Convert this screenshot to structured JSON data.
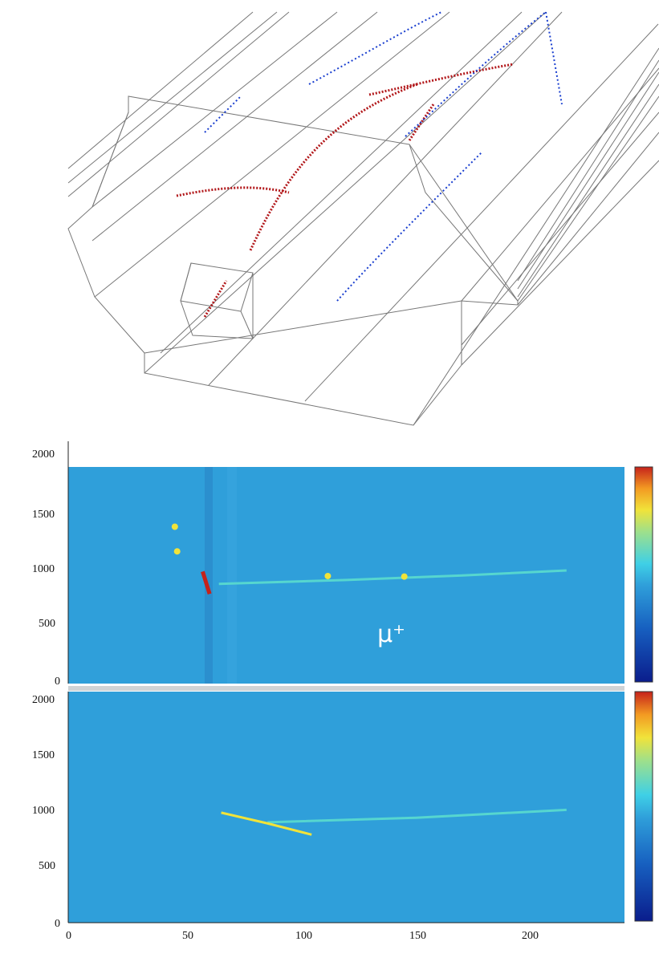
{
  "colors": {
    "track_red": "#b2181b",
    "hit_blue": "#1a3fcf",
    "wire_gray": "#777777",
    "panel_bg": "#2f9fda",
    "muon_track": "#56d6cf",
    "colorbar": [
      "#0a1d8c",
      "#1760c0",
      "#2f9fda",
      "#3fd0e6",
      "#9fe08a",
      "#f1e33a",
      "#f39a22",
      "#e2451b",
      "#c6221b"
    ]
  },
  "chart_data": [
    {
      "type": "heatmap",
      "panel": "top",
      "annotation": "μ⁺",
      "xlim": [
        0,
        240
      ],
      "ylim": [
        0,
        2048
      ],
      "yticks": [
        "0",
        "500",
        "1000",
        "1500",
        "2000"
      ],
      "colorbar": true,
      "tracks": [
        {
          "kind": "muon",
          "points": [
            [
              65,
              890
            ],
            [
              120,
              925
            ],
            [
              170,
              965
            ],
            [
              215,
              1010
            ]
          ]
        },
        {
          "kind": "stub",
          "points": [
            [
              58,
              1000
            ],
            [
              61,
              800
            ]
          ]
        }
      ],
      "blobs": [
        [
          46,
          1400
        ],
        [
          47,
          1180
        ],
        [
          112,
          960
        ],
        [
          145,
          955
        ]
      ]
    },
    {
      "type": "heatmap",
      "panel": "bottom",
      "xlim": [
        0,
        240
      ],
      "ylim": [
        0,
        2048
      ],
      "xticks": [
        "0",
        "50",
        "100",
        "150",
        "200"
      ],
      "yticks": [
        "0",
        "500",
        "1000",
        "1500",
        "2000"
      ],
      "colorbar": true,
      "tracks": [
        {
          "kind": "muon",
          "points": [
            [
              86,
              890
            ],
            [
              150,
              930
            ],
            [
              215,
              1000
            ]
          ]
        },
        {
          "kind": "kink",
          "points": [
            [
              66,
              975
            ],
            [
              86,
              880
            ],
            [
              105,
              780
            ]
          ]
        }
      ]
    }
  ]
}
